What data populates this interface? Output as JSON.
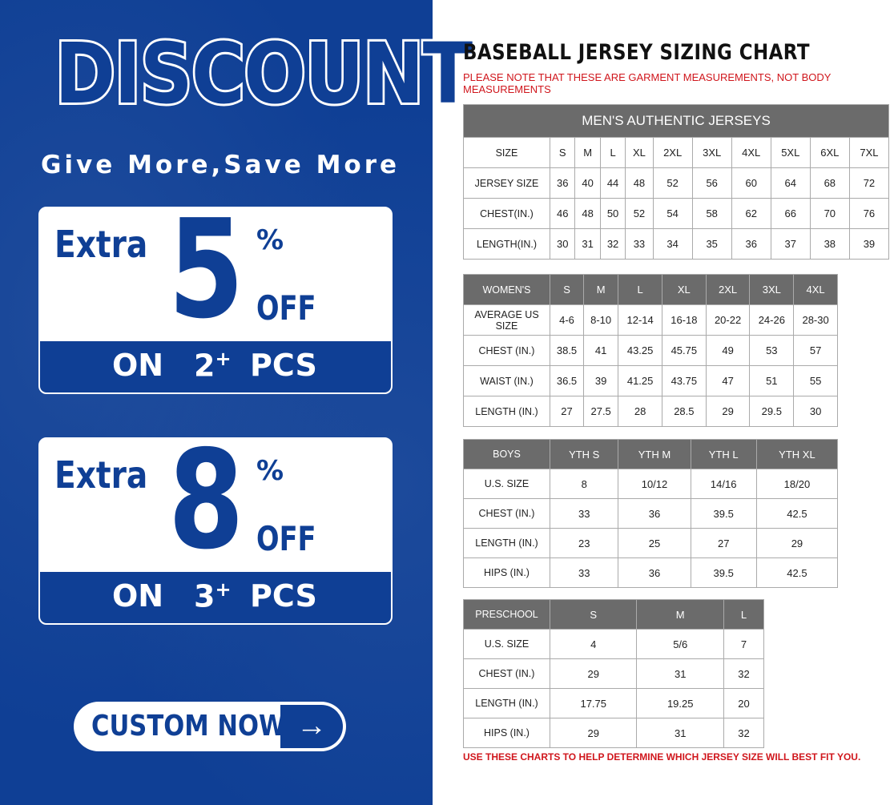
{
  "promo": {
    "headline": "DISCOUNT",
    "slogan": "Give More,Save More",
    "offers": [
      {
        "extra": "Extra",
        "amount": "5",
        "percent": "%",
        "off": "OFF",
        "on": "ON",
        "qty": "2",
        "plus": "+",
        "pcs": "PCS"
      },
      {
        "extra": "Extra",
        "amount": "8",
        "percent": "%",
        "off": "OFF",
        "on": "ON",
        "qty": "3",
        "plus": "+",
        "pcs": "PCS"
      }
    ],
    "cta_label": "CUSTOM NOW",
    "cta_icon": "arrow-right-icon",
    "brand_color": "#0f3f95"
  },
  "chart": {
    "title": "BASEBALL JERSEY SIZING CHART",
    "note": "PLEASE NOTE THAT THESE ARE GARMENT MEASUREMENTS, NOT BODY MEASUREMENTS",
    "footer": "USE THESE CHARTS TO HELP DETERMINE WHICH JERSEY SIZE WILL BEST FIT YOU.",
    "note_color": "#d0161c",
    "header_color": "#6b6b6b",
    "tables": [
      {
        "caption": "MEN'S AUTHENTIC JERSEYS",
        "header": [
          "SIZE",
          "S",
          "M",
          "L",
          "XL",
          "2XL",
          "3XL",
          "4XL",
          "5XL",
          "6XL",
          "7XL"
        ],
        "header_dark": false,
        "rows": [
          [
            "JERSEY SIZE",
            "36",
            "40",
            "44",
            "48",
            "52",
            "56",
            "60",
            "64",
            "68",
            "72"
          ],
          [
            "CHEST(IN.)",
            "46",
            "48",
            "50",
            "52",
            "54",
            "58",
            "62",
            "66",
            "70",
            "76"
          ],
          [
            "LENGTH(IN.)",
            "30",
            "31",
            "32",
            "33",
            "34",
            "35",
            "36",
            "37",
            "38",
            "39"
          ]
        ]
      },
      {
        "header": [
          "WOMEN'S",
          "S",
          "M",
          "L",
          "XL",
          "2XL",
          "3XL",
          "4XL"
        ],
        "header_dark": true,
        "rows": [
          [
            "AVERAGE US SIZE",
            "4-6",
            "8-10",
            "12-14",
            "16-18",
            "20-22",
            "24-26",
            "28-30"
          ],
          [
            "CHEST (IN.)",
            "38.5",
            "41",
            "43.25",
            "45.75",
            "49",
            "53",
            "57"
          ],
          [
            "WAIST (IN.)",
            "36.5",
            "39",
            "41.25",
            "43.75",
            "47",
            "51",
            "55"
          ],
          [
            "LENGTH (IN.)",
            "27",
            "27.5",
            "28",
            "28.5",
            "29",
            "29.5",
            "30"
          ]
        ]
      },
      {
        "header": [
          "BOYS",
          "YTH S",
          "YTH M",
          "YTH L",
          "YTH XL"
        ],
        "header_dark": true,
        "rows": [
          [
            "U.S. SIZE",
            "8",
            "10/12",
            "14/16",
            "18/20"
          ],
          [
            "CHEST (IN.)",
            "33",
            "36",
            "39.5",
            "42.5"
          ],
          [
            "LENGTH (IN.)",
            "23",
            "25",
            "27",
            "29"
          ],
          [
            "HIPS (IN.)",
            "33",
            "36",
            "39.5",
            "42.5"
          ]
        ]
      },
      {
        "header": [
          "PRESCHOOL",
          "S",
          "M",
          "L"
        ],
        "header_dark": true,
        "rows": [
          [
            "U.S. SIZE",
            "4",
            "5/6",
            "7"
          ],
          [
            "CHEST (IN.)",
            "29",
            "31",
            "32"
          ],
          [
            "LENGTH (IN.)",
            "17.75",
            "19.25",
            "20"
          ],
          [
            "HIPS (IN.)",
            "29",
            "31",
            "32"
          ]
        ]
      }
    ]
  }
}
